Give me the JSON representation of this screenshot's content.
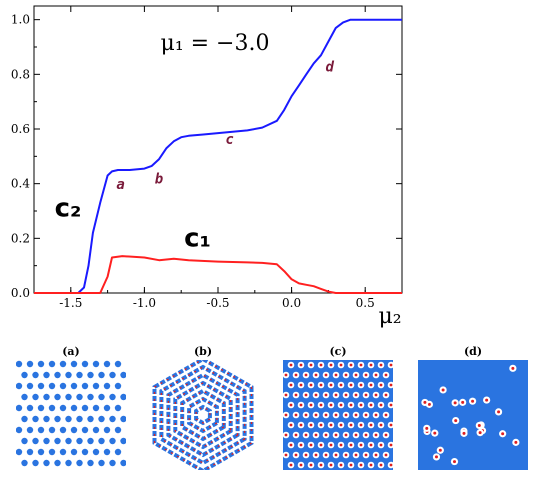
{
  "chart_data": {
    "type": "line",
    "annotation_title": "μ₁ = −3.0",
    "xlabel": "μ₂",
    "ylabel": "",
    "xlim": [
      -1.75,
      0.75
    ],
    "ylim": [
      0,
      1.05
    ],
    "x_ticks": [
      -1.5,
      -1.0,
      -0.5,
      0.0,
      0.5
    ],
    "x_tick_labels": [
      "-1.5",
      "-1.0",
      "-0.5",
      "0.0",
      "0.5"
    ],
    "y_ticks": [
      0.0,
      0.2,
      0.4,
      0.6,
      0.8,
      1.0
    ],
    "y_tick_labels": [
      "0.0",
      "0.2",
      "0.4",
      "0.6",
      "0.8",
      "1.0"
    ],
    "grid": false,
    "series": [
      {
        "name": "c2",
        "color": "#1a1aff",
        "x": [
          -1.75,
          -1.45,
          -1.41,
          -1.38,
          -1.35,
          -1.3,
          -1.25,
          -1.22,
          -1.18,
          -1.1,
          -1.0,
          -0.95,
          -0.9,
          -0.85,
          -0.8,
          -0.75,
          -0.7,
          -0.6,
          -0.5,
          -0.4,
          -0.3,
          -0.2,
          -0.1,
          -0.05,
          0.0,
          0.05,
          0.1,
          0.15,
          0.2,
          0.25,
          0.3,
          0.35,
          0.4,
          0.5,
          0.6,
          0.75
        ],
        "y": [
          0.0,
          0.0,
          0.02,
          0.1,
          0.22,
          0.33,
          0.43,
          0.445,
          0.45,
          0.45,
          0.455,
          0.465,
          0.49,
          0.53,
          0.555,
          0.57,
          0.575,
          0.58,
          0.585,
          0.59,
          0.595,
          0.605,
          0.63,
          0.67,
          0.72,
          0.76,
          0.8,
          0.84,
          0.87,
          0.92,
          0.97,
          0.99,
          1.0,
          1.0,
          1.0,
          1.0
        ]
      },
      {
        "name": "c1",
        "color": "#ff2020",
        "x": [
          -1.75,
          -1.3,
          -1.25,
          -1.22,
          -1.15,
          -1.0,
          -0.9,
          -0.8,
          -0.7,
          -0.5,
          -0.3,
          -0.2,
          -0.1,
          -0.05,
          0.0,
          0.05,
          0.1,
          0.15,
          0.2,
          0.25,
          0.3,
          0.35,
          0.4,
          0.75
        ],
        "y": [
          0.0,
          0.0,
          0.06,
          0.13,
          0.135,
          0.13,
          0.12,
          0.125,
          0.12,
          0.115,
          0.112,
          0.11,
          0.105,
          0.08,
          0.05,
          0.035,
          0.03,
          0.025,
          0.015,
          0.005,
          0.0,
          0.0,
          0.0,
          0.0
        ]
      }
    ],
    "curve_labels": [
      {
        "text": "c₂",
        "x": -1.61,
        "y": 0.28,
        "color": "#000000"
      },
      {
        "text": "c₁",
        "x": -0.73,
        "y": 0.17,
        "color": "#000000"
      }
    ],
    "point_labels": [
      {
        "text": "a",
        "x": -1.19,
        "y": 0.38
      },
      {
        "text": "b",
        "x": -0.93,
        "y": 0.4
      },
      {
        "text": "c",
        "x": -0.45,
        "y": 0.545
      },
      {
        "text": "d",
        "x": 0.23,
        "y": 0.81
      }
    ],
    "point_label_color": "#7a1a3a"
  },
  "panels": [
    {
      "label": "(a)",
      "pattern": "a"
    },
    {
      "label": "(b)",
      "pattern": "b"
    },
    {
      "label": "(c)",
      "pattern": "c"
    },
    {
      "label": "(d)",
      "pattern": "d"
    }
  ]
}
